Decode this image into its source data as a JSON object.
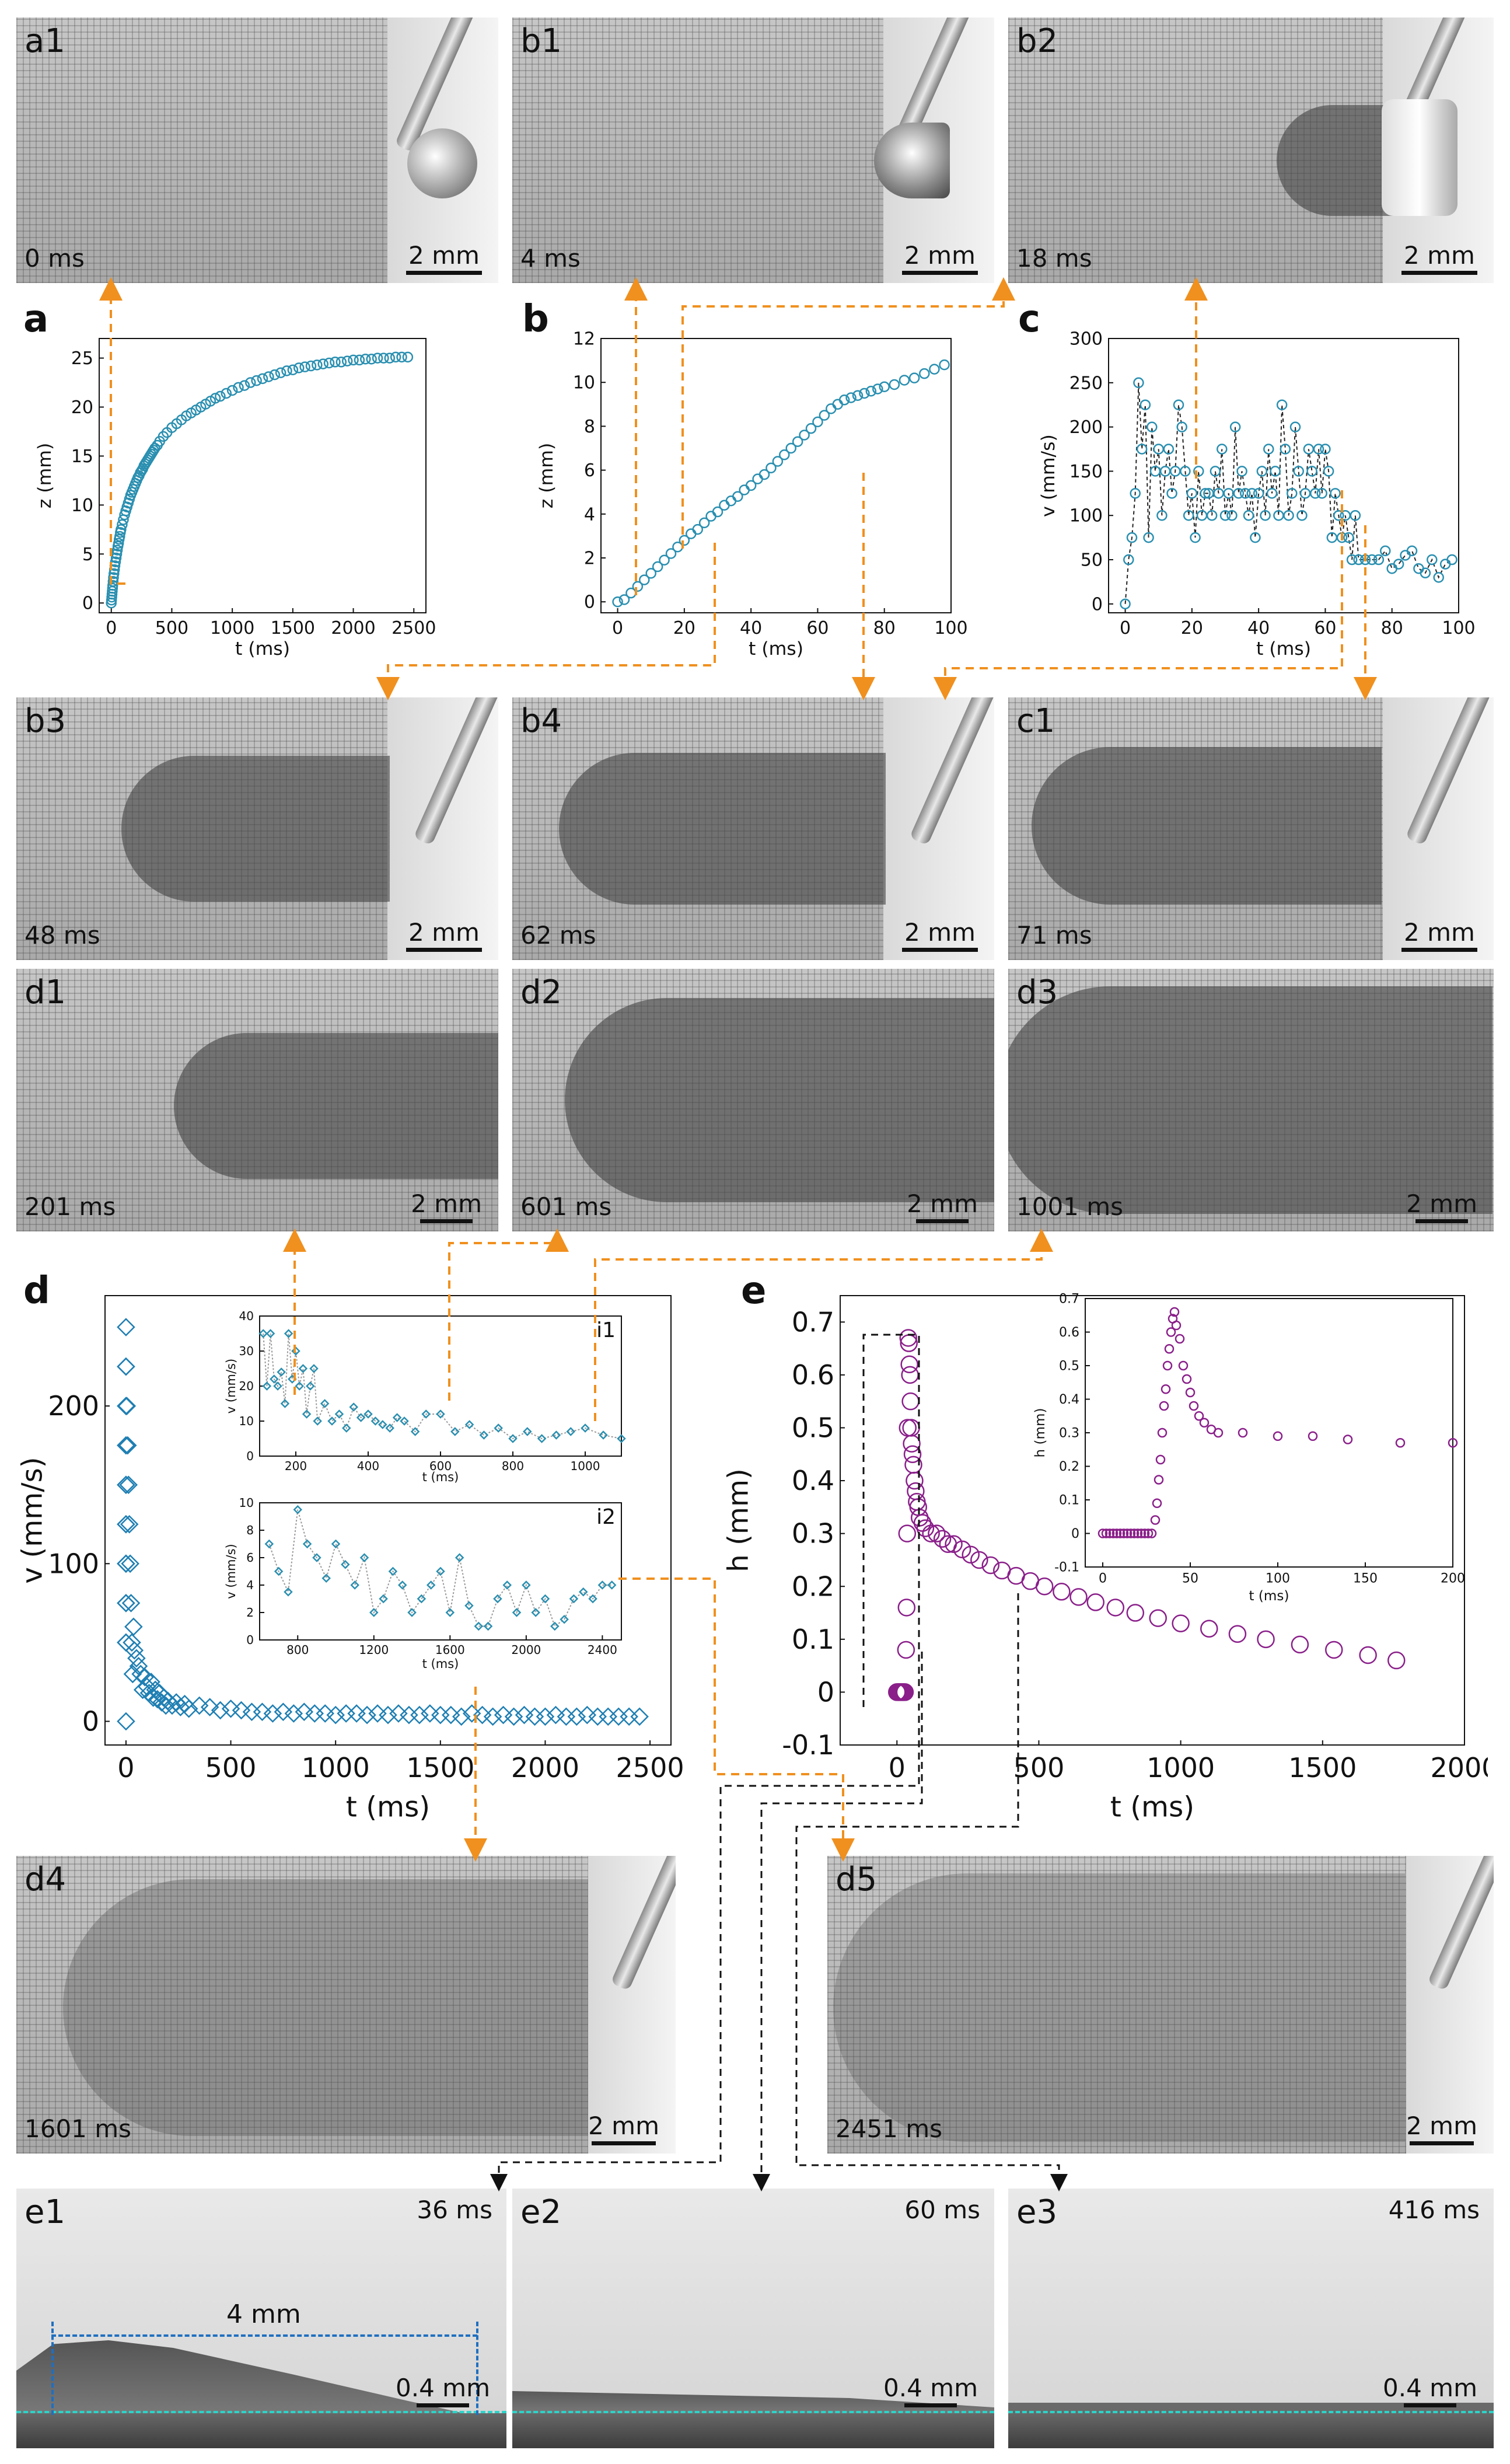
{
  "panels": {
    "a1": {
      "tag": "a1",
      "time": "0 ms",
      "scale": "2 mm"
    },
    "b1": {
      "tag": "b1",
      "time": "4 ms",
      "scale": "2 mm"
    },
    "b2": {
      "tag": "b2",
      "time": "18 ms",
      "scale": "2 mm"
    },
    "b3": {
      "tag": "b3",
      "time": "48 ms",
      "scale": "2 mm"
    },
    "b4": {
      "tag": "b4",
      "time": "62 ms",
      "scale": "2 mm"
    },
    "c1": {
      "tag": "c1",
      "time": "71 ms",
      "scale": "2 mm"
    },
    "d1": {
      "tag": "d1",
      "time": "201 ms",
      "scale": "2 mm"
    },
    "d2": {
      "tag": "d2",
      "time": "601 ms",
      "scale": "2 mm"
    },
    "d3": {
      "tag": "d3",
      "time": "1001 ms",
      "scale": "2 mm"
    },
    "d4": {
      "tag": "d4",
      "time": "1601 ms",
      "scale": "2 mm"
    },
    "d5": {
      "tag": "d5",
      "time": "2451 ms",
      "scale": "2 mm"
    },
    "e1": {
      "tag": "e1",
      "time": "36 ms",
      "scale": "0.4 mm",
      "dim": "4 mm"
    },
    "e2": {
      "tag": "e2",
      "time": "60 ms",
      "scale": "0.4 mm"
    },
    "e3": {
      "tag": "e3",
      "time": "416 ms",
      "scale": "0.4 mm"
    }
  },
  "colors": {
    "cyan": "#2a8fb0",
    "purple": "#8a1f8a",
    "orange": "#f0901e",
    "blue": "#1f6fc0"
  },
  "chart_data": [
    {
      "id": "a",
      "label": "a",
      "type": "scatter",
      "xlabel": "t (ms)",
      "ylabel": "z (mm)",
      "xlim": [
        -100,
        2600
      ],
      "ylim": [
        -1,
        27
      ],
      "xticks": [
        0,
        500,
        1000,
        1500,
        2000,
        2500
      ],
      "yticks": [
        0,
        5,
        10,
        15,
        20,
        25
      ],
      "x": [
        0,
        2,
        4,
        6,
        8,
        10,
        12,
        15,
        18,
        22,
        26,
        30,
        35,
        40,
        45,
        50,
        55,
        60,
        65,
        70,
        75,
        80,
        90,
        100,
        110,
        120,
        130,
        140,
        150,
        160,
        170,
        180,
        190,
        200,
        210,
        220,
        230,
        240,
        250,
        260,
        270,
        280,
        290,
        300,
        310,
        320,
        330,
        340,
        350,
        360,
        380,
        400,
        430,
        460,
        500,
        540,
        580,
        620,
        660,
        700,
        740,
        780,
        820,
        860,
        900,
        950,
        1000,
        1050,
        1100,
        1150,
        1200,
        1250,
        1300,
        1350,
        1400,
        1450,
        1500,
        1550,
        1600,
        1650,
        1700,
        1750,
        1800,
        1850,
        1900,
        1950,
        2000,
        2050,
        2100,
        2150,
        2200,
        2250,
        2300,
        2350,
        2400,
        2450
      ],
      "y": [
        0.0,
        0.3,
        0.6,
        0.9,
        1.2,
        1.5,
        1.8,
        2.2,
        2.6,
        3.0,
        3.4,
        3.8,
        4.2,
        4.6,
        5.0,
        5.4,
        5.8,
        6.1,
        6.5,
        6.8,
        7.2,
        7.5,
        8.0,
        8.5,
        9.0,
        9.4,
        9.8,
        10.2,
        10.6,
        11.0,
        11.3,
        11.6,
        11.9,
        12.2,
        12.5,
        12.8,
        13.0,
        13.3,
        13.5,
        13.7,
        14.0,
        14.2,
        14.4,
        14.6,
        14.8,
        15.0,
        15.2,
        15.4,
        15.6,
        15.8,
        16.1,
        16.5,
        17.0,
        17.4,
        17.9,
        18.3,
        18.7,
        19.1,
        19.4,
        19.7,
        20.0,
        20.3,
        20.6,
        20.9,
        21.1,
        21.4,
        21.7,
        22.0,
        22.2,
        22.5,
        22.7,
        22.9,
        23.1,
        23.3,
        23.5,
        23.7,
        23.8,
        24.0,
        24.1,
        24.2,
        24.3,
        24.4,
        24.5,
        24.6,
        24.6,
        24.7,
        24.8,
        24.8,
        24.9,
        24.9,
        25.0,
        25.0,
        25.0,
        25.1,
        25.1,
        25.1
      ]
    },
    {
      "id": "b",
      "label": "b",
      "type": "scatter",
      "xlabel": "t (ms)",
      "ylabel": "z (mm)",
      "xlim": [
        -5,
        100
      ],
      "ylim": [
        -0.5,
        12
      ],
      "xticks": [
        0,
        20,
        40,
        60,
        80,
        100
      ],
      "yticks": [
        0,
        2,
        4,
        6,
        8,
        10,
        12
      ],
      "x": [
        0,
        2,
        4,
        6,
        8,
        10,
        12,
        14,
        16,
        18,
        20,
        22,
        24,
        26,
        28,
        30,
        32,
        34,
        36,
        38,
        40,
        42,
        44,
        46,
        48,
        50,
        52,
        54,
        56,
        58,
        60,
        62,
        64,
        66,
        68,
        70,
        72,
        74,
        76,
        78,
        80,
        83,
        86,
        89,
        92,
        95,
        98
      ],
      "y": [
        0.0,
        0.1,
        0.4,
        0.7,
        1.0,
        1.3,
        1.6,
        1.9,
        2.2,
        2.5,
        2.8,
        3.1,
        3.3,
        3.6,
        3.9,
        4.1,
        4.4,
        4.6,
        4.8,
        5.1,
        5.3,
        5.6,
        5.8,
        6.1,
        6.4,
        6.7,
        7.0,
        7.3,
        7.6,
        7.9,
        8.2,
        8.5,
        8.8,
        9.0,
        9.2,
        9.3,
        9.4,
        9.5,
        9.6,
        9.7,
        9.8,
        9.9,
        10.1,
        10.2,
        10.4,
        10.6,
        10.8
      ]
    },
    {
      "id": "c",
      "label": "c",
      "type": "line",
      "xlabel": "t (ms)",
      "ylabel": "v (mm/s)",
      "xlim": [
        -5,
        100
      ],
      "ylim": [
        -10,
        300
      ],
      "xticks": [
        0,
        20,
        40,
        60,
        80,
        100
      ],
      "yticks": [
        0,
        50,
        100,
        150,
        200,
        250,
        300
      ],
      "x": [
        0,
        1,
        2,
        3,
        4,
        5,
        6,
        7,
        8,
        9,
        10,
        11,
        12,
        13,
        14,
        15,
        16,
        17,
        18,
        19,
        20,
        21,
        22,
        23,
        24,
        25,
        26,
        27,
        28,
        29,
        30,
        31,
        32,
        33,
        34,
        35,
        36,
        37,
        38,
        39,
        40,
        41,
        42,
        43,
        44,
        45,
        46,
        47,
        48,
        49,
        50,
        51,
        52,
        53,
        54,
        55,
        56,
        57,
        58,
        59,
        60,
        61,
        62,
        63,
        64,
        65,
        66,
        67,
        68,
        69,
        70,
        72,
        74,
        76,
        78,
        80,
        82,
        84,
        86,
        88,
        90,
        92,
        94,
        96,
        98
      ],
      "y": [
        0,
        50,
        75,
        125,
        250,
        175,
        225,
        75,
        200,
        150,
        175,
        100,
        150,
        175,
        125,
        150,
        225,
        200,
        150,
        100,
        125,
        75,
        150,
        100,
        125,
        125,
        100,
        150,
        125,
        175,
        100,
        125,
        100,
        200,
        125,
        150,
        125,
        100,
        125,
        75,
        125,
        150,
        100,
        175,
        125,
        150,
        100,
        225,
        175,
        100,
        125,
        200,
        150,
        100,
        125,
        175,
        150,
        125,
        175,
        125,
        175,
        150,
        75,
        125,
        100,
        75,
        100,
        75,
        50,
        100,
        50,
        50,
        50,
        50,
        60,
        40,
        45,
        55,
        60,
        40,
        35,
        50,
        30,
        45,
        50
      ]
    },
    {
      "id": "d",
      "label": "d",
      "type": "scatter",
      "xlabel": "t (ms)",
      "ylabel": "v (mm/s)",
      "xlim": [
        -100,
        2600
      ],
      "ylim": [
        -15,
        270
      ],
      "xticks": [
        0,
        500,
        1000,
        1500,
        2000,
        2500
      ],
      "yticks": [
        0,
        100,
        200
      ],
      "x": [
        0,
        0,
        0,
        0,
        0,
        0,
        0,
        0,
        0,
        0,
        0,
        0,
        0,
        0,
        0,
        0,
        0,
        0,
        4,
        8,
        12,
        16,
        20,
        24,
        28,
        32,
        36,
        40,
        50,
        60,
        70,
        80,
        90,
        100,
        110,
        120,
        130,
        140,
        150,
        160,
        170,
        180,
        190,
        200,
        220,
        240,
        260,
        280,
        300,
        350,
        400,
        450,
        500,
        550,
        600,
        650,
        700,
        750,
        800,
        850,
        900,
        950,
        1000,
        1050,
        1100,
        1150,
        1200,
        1250,
        1300,
        1350,
        1400,
        1450,
        1500,
        1550,
        1600,
        1650,
        1700,
        1750,
        1800,
        1850,
        1900,
        1950,
        2000,
        2050,
        2100,
        2150,
        2200,
        2250,
        2300,
        2350,
        2400,
        2450
      ],
      "y": [
        250,
        225,
        200,
        175,
        150,
        125,
        100,
        75,
        50,
        0,
        225,
        200,
        175,
        150,
        125,
        100,
        75,
        50,
        200,
        175,
        150,
        125,
        100,
        75,
        50,
        30,
        60,
        45,
        40,
        35,
        30,
        20,
        28,
        22,
        18,
        25,
        15,
        20,
        14,
        18,
        12,
        15,
        10,
        13,
        10,
        12,
        9,
        11,
        8,
        10,
        9,
        7,
        8,
        7,
        6,
        6,
        5,
        6,
        5,
        6,
        5,
        5,
        4,
        5,
        5,
        4,
        5,
        4,
        5,
        4,
        4,
        5,
        4,
        4,
        3,
        5,
        4,
        3,
        4,
        3,
        4,
        3,
        3,
        4,
        3,
        3,
        4,
        3,
        3,
        3,
        3,
        3
      ]
    },
    {
      "id": "i1",
      "label": "i1",
      "type": "line",
      "xlabel": "t (ms)",
      "ylabel": "v (mm/s)",
      "xlim": [
        100,
        1100
      ],
      "ylim": [
        0,
        40
      ],
      "xticks": [
        200,
        400,
        600,
        800,
        1000
      ],
      "yticks": [
        0,
        10,
        20,
        30,
        40
      ],
      "x": [
        110,
        120,
        130,
        140,
        150,
        160,
        170,
        180,
        190,
        200,
        210,
        220,
        230,
        240,
        250,
        260,
        280,
        300,
        320,
        340,
        360,
        380,
        400,
        420,
        440,
        460,
        480,
        500,
        530,
        560,
        600,
        640,
        680,
        720,
        760,
        800,
        840,
        880,
        920,
        960,
        1000,
        1050,
        1100
      ],
      "y": [
        35,
        20,
        35,
        22,
        20,
        24,
        15,
        35,
        22,
        30,
        20,
        25,
        12,
        20,
        25,
        10,
        15,
        10,
        12,
        8,
        14,
        11,
        12,
        10,
        9,
        8,
        11,
        10,
        7,
        12,
        12,
        7,
        9,
        6,
        8,
        5,
        7,
        5,
        6,
        7,
        8,
        6,
        5
      ]
    },
    {
      "id": "i2",
      "label": "i2",
      "type": "line",
      "xlabel": "t (ms)",
      "ylabel": "v (mm/s)",
      "xlim": [
        600,
        2500
      ],
      "ylim": [
        0,
        10
      ],
      "xticks": [
        800,
        1200,
        1600,
        2000,
        2400
      ],
      "yticks": [
        0,
        2,
        4,
        6,
        8,
        10
      ],
      "x": [
        650,
        700,
        750,
        800,
        850,
        900,
        950,
        1000,
        1050,
        1100,
        1150,
        1200,
        1250,
        1300,
        1350,
        1400,
        1450,
        1500,
        1550,
        1600,
        1650,
        1700,
        1750,
        1800,
        1850,
        1900,
        1950,
        2000,
        2050,
        2100,
        2150,
        2200,
        2250,
        2300,
        2350,
        2400,
        2450
      ],
      "y": [
        7,
        5,
        3.5,
        9.5,
        7,
        6,
        4.5,
        7,
        5.5,
        4,
        6,
        2,
        3,
        5,
        4,
        2,
        3,
        4,
        5,
        2,
        6,
        2.5,
        1,
        1,
        3,
        4,
        2,
        4,
        2,
        3,
        1,
        1.5,
        3,
        3.5,
        3,
        4,
        4
      ]
    },
    {
      "id": "e",
      "label": "e",
      "type": "scatter",
      "xlabel": "t (ms)",
      "ylabel": "h (mm)",
      "xlim": [
        -200,
        2000
      ],
      "ylim": [
        -0.1,
        0.75
      ],
      "xticks": [
        0,
        500,
        1000,
        1500,
        2000
      ],
      "yticks": [
        -0.1,
        0.0,
        0.1,
        0.2,
        0.3,
        0.4,
        0.5,
        0.6,
        0.7
      ],
      "x": [
        0,
        4,
        8,
        12,
        16,
        20,
        24,
        28,
        32,
        34,
        36,
        38,
        40,
        42,
        44,
        46,
        48,
        50,
        52,
        55,
        58,
        62,
        66,
        70,
        75,
        80,
        90,
        100,
        120,
        140,
        160,
        180,
        200,
        230,
        260,
        290,
        330,
        370,
        420,
        470,
        520,
        580,
        640,
        700,
        770,
        840,
        920,
        1000,
        1100,
        1200,
        1300,
        1420,
        1540,
        1660,
        1760
      ],
      "y": [
        0.0,
        0.0,
        0.0,
        0.0,
        0.0,
        0.0,
        0.0,
        0.0,
        0.08,
        0.16,
        0.3,
        0.5,
        0.67,
        0.66,
        0.62,
        0.6,
        0.55,
        0.5,
        0.47,
        0.45,
        0.43,
        0.4,
        0.38,
        0.36,
        0.35,
        0.33,
        0.32,
        0.31,
        0.3,
        0.3,
        0.29,
        0.28,
        0.28,
        0.27,
        0.26,
        0.25,
        0.24,
        0.23,
        0.22,
        0.21,
        0.2,
        0.19,
        0.18,
        0.17,
        0.16,
        0.15,
        0.14,
        0.13,
        0.12,
        0.11,
        0.1,
        0.09,
        0.08,
        0.07,
        0.06
      ]
    },
    {
      "id": "e_inset",
      "label": "",
      "type": "scatter",
      "xlabel": "t (ms)",
      "ylabel": "h (mm)",
      "xlim": [
        -10,
        200
      ],
      "ylim": [
        -0.1,
        0.7
      ],
      "xticks": [
        0,
        50,
        100,
        150,
        200
      ],
      "yticks": [
        -0.1,
        0.0,
        0.1,
        0.2,
        0.3,
        0.4,
        0.5,
        0.6,
        0.7
      ],
      "x": [
        0,
        2,
        4,
        6,
        8,
        10,
        12,
        14,
        16,
        18,
        20,
        22,
        24,
        26,
        28,
        30,
        31,
        32,
        33,
        34,
        35,
        36,
        37,
        38,
        39,
        40,
        41,
        42,
        44,
        46,
        48,
        50,
        52,
        55,
        58,
        62,
        66,
        80,
        100,
        120,
        140,
        170,
        200
      ],
      "y": [
        0,
        0,
        0,
        0,
        0,
        0,
        0,
        0,
        0,
        0,
        0,
        0,
        0,
        0,
        0,
        0.04,
        0.09,
        0.16,
        0.22,
        0.3,
        0.38,
        0.43,
        0.5,
        0.55,
        0.6,
        0.64,
        0.66,
        0.62,
        0.58,
        0.5,
        0.46,
        0.42,
        0.38,
        0.35,
        0.33,
        0.31,
        0.3,
        0.3,
        0.29,
        0.29,
        0.28,
        0.27,
        0.27
      ]
    }
  ]
}
